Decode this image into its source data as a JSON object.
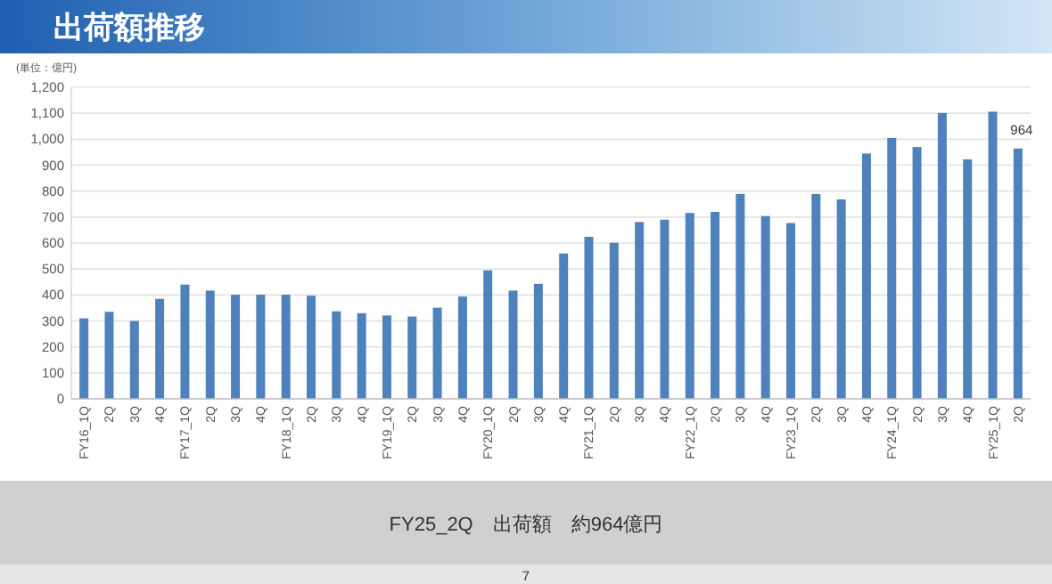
{
  "chart_data": {
    "type": "bar",
    "title": "出荷額推移",
    "ylabel": "(単位：億円)",
    "categories": [
      "FY16_1Q",
      "2Q",
      "3Q",
      "4Q",
      "FY17_1Q",
      "2Q",
      "3Q",
      "4Q",
      "FY18_1Q",
      "2Q",
      "3Q",
      "4Q",
      "FY19_1Q",
      "2Q",
      "3Q",
      "4Q",
      "FY20_1Q",
      "2Q",
      "3Q",
      "4Q",
      "FY21_1Q",
      "2Q",
      "3Q",
      "4Q",
      "FY22_1Q",
      "2Q",
      "3Q",
      "4Q",
      "FY23_1Q",
      "2Q",
      "3Q",
      "4Q",
      "FY24_1Q",
      "2Q",
      "3Q",
      "4Q",
      "FY25_1Q",
      "2Q"
    ],
    "values": [
      310,
      335,
      300,
      385,
      440,
      417,
      401,
      401,
      401,
      397,
      337,
      330,
      321,
      317,
      351,
      394,
      495,
      417,
      443,
      560,
      624,
      601,
      681,
      690,
      716,
      720,
      789,
      704,
      677,
      789,
      768,
      945,
      1005,
      970,
      1101,
      922,
      1106,
      964
    ],
    "value_labels": [
      null,
      null,
      null,
      null,
      null,
      null,
      null,
      null,
      null,
      null,
      null,
      null,
      null,
      null,
      null,
      null,
      null,
      null,
      null,
      null,
      null,
      null,
      null,
      null,
      null,
      null,
      null,
      null,
      null,
      null,
      null,
      null,
      null,
      null,
      null,
      null,
      null,
      "964"
    ],
    "color": "#4f81bd",
    "ylim": [
      0,
      1200
    ],
    "yticks": [
      0,
      {
        "value": 100,
        "label": "100"
      },
      {
        "value": 200,
        "label": "200"
      },
      {
        "value": 300,
        "label": "300"
      },
      {
        "value": 400,
        "label": "400"
      },
      {
        "value": 500,
        "label": "500"
      },
      {
        "value": 600,
        "label": "600"
      },
      {
        "value": 700,
        "label": "700"
      },
      {
        "value": 800,
        "label": "800"
      },
      {
        "value": 900,
        "label": "900"
      },
      {
        "value": 1000,
        "label": "1,000"
      },
      {
        "value": 1100,
        "label": "1,100"
      },
      {
        "value": 1200,
        "label": "1,200"
      }
    ],
    "grid": "y",
    "annotations": [
      "FY25_2Q　出荷額　約964億円",
      "7"
    ]
  }
}
